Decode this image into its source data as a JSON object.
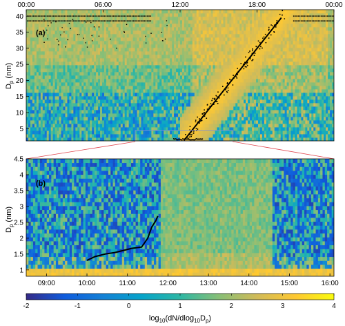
{
  "chart_data": [
    {
      "type": "heatmap",
      "panel_label": "(a)",
      "ylabel": "D",
      "ylabel_sub": "p",
      "ylabel_unit": " (nm)",
      "x_top_ticks": [
        "00:00",
        "06:00",
        "12:00",
        "18:00",
        "00:00"
      ],
      "x_range_hours": [
        0,
        24
      ],
      "y_ticks": [
        5,
        10,
        15,
        20,
        25,
        30,
        35,
        40
      ],
      "ylim": [
        1.2,
        42
      ],
      "growth_line": {
        "x_hours": [
          12.3,
          19.9
        ],
        "y_nm": [
          1.3,
          39.5
        ]
      },
      "background_mode_nm": [
        40,
        38.5
      ],
      "zoom_window_hours": [
        8.5,
        16.1
      ],
      "zoom_window_nm": [
        1.2,
        4.5
      ]
    },
    {
      "type": "heatmap",
      "panel_label": "(b)",
      "ylabel": "D",
      "ylabel_sub": "p",
      "ylabel_unit": " (nm)",
      "x_ticks": [
        "09:00",
        "10:00",
        "11:00",
        "12:00",
        "13:00",
        "14:00",
        "15:00",
        "16:00"
      ],
      "x_range_hours": [
        8.5,
        16.1
      ],
      "y_ticks": [
        "1",
        "1.5",
        "2",
        "2.5",
        "3",
        "3.5",
        "4",
        "4.5"
      ],
      "ylim": [
        0.8,
        4.5
      ],
      "growth_line": {
        "x_hours": [
          10.0,
          10.2,
          10.45,
          10.7,
          10.95,
          11.1,
          11.35,
          11.5,
          11.6,
          11.7,
          11.75
        ],
        "y_nm": [
          1.3,
          1.42,
          1.5,
          1.55,
          1.63,
          1.68,
          1.72,
          2.0,
          2.35,
          2.55,
          2.7
        ]
      }
    }
  ],
  "colorbar": {
    "ticks": [
      "-2",
      "-1",
      "0",
      "1",
      "2",
      "3",
      "4"
    ],
    "range": [
      -2,
      4
    ],
    "colormap": "parula",
    "colors": [
      "#352a87",
      "#0f5cdd",
      "#1481d6",
      "#06a4ca",
      "#2eb7a4",
      "#87bf77",
      "#d1bb59",
      "#fec832",
      "#f9fb0e"
    ],
    "label_parts": [
      "log",
      "10",
      "(dN/dlog",
      "10",
      "D",
      "p",
      ")"
    ]
  }
}
